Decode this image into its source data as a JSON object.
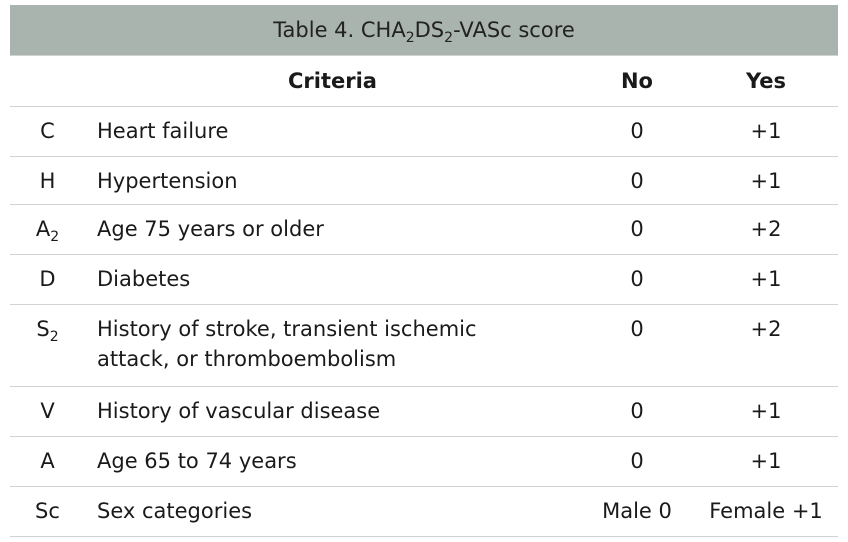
{
  "table": {
    "title": [
      "Table 4. CHA",
      "2",
      "DS",
      "2",
      "-VASc score"
    ],
    "header": [
      "Criteria",
      "No",
      "Yes"
    ],
    "rows": [
      {
        "code": [
          "C"
        ],
        "criteria": "Heart failure",
        "no": "0",
        "yes": "+1"
      },
      {
        "code": [
          "H"
        ],
        "criteria": "Hypertension",
        "no": "0",
        "yes": "+1"
      },
      {
        "code": [
          "A",
          "2"
        ],
        "criteria": "Age 75 years or older",
        "no": "0",
        "yes": "+2"
      },
      {
        "code": [
          "D"
        ],
        "criteria": "Diabetes",
        "no": "0",
        "yes": "+1"
      },
      {
        "code": [
          "S",
          "2"
        ],
        "criteria": "History of stroke, transient ischemic attack, or thromboembolism",
        "no": "0",
        "yes": "+2"
      },
      {
        "code": [
          "V"
        ],
        "criteria": "History of vascular disease",
        "no": "0",
        "yes": "+1"
      },
      {
        "code": [
          "A"
        ],
        "criteria": "Age 65 to 74 years",
        "no": "0",
        "yes": "+1"
      },
      {
        "code": [
          "Sc"
        ],
        "criteria": "Sex categories",
        "no": "Male 0",
        "yes": "Female +1"
      }
    ]
  }
}
